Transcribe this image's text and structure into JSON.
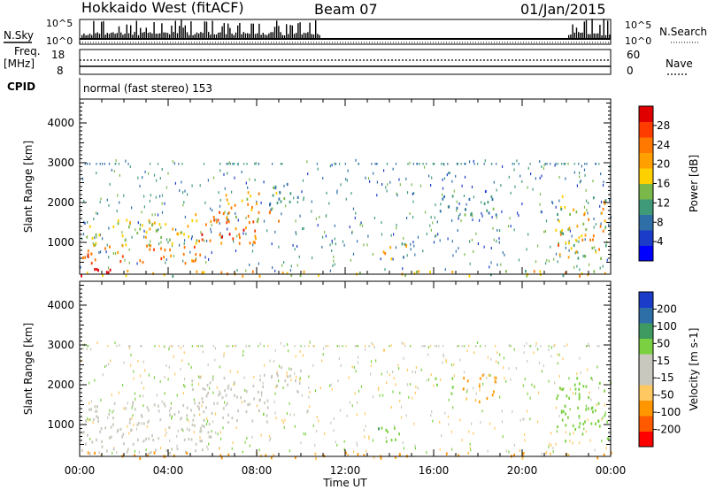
{
  "header": {
    "station": "Hokkaido West (fitACF)",
    "beam": "Beam 07",
    "date": "01/Jan/2015"
  },
  "panels": {
    "nsky": {
      "label": "N.Sky",
      "ytick_top": "10^5",
      "ytick_bottom": "10^0"
    },
    "nsearch": {
      "label": "N.Search",
      "ytick_top": "10^5",
      "ytick_bottom": "10^0"
    },
    "freq": {
      "label_line1": "Freq.",
      "label_line2": "[MHz]",
      "ytick_top": "18",
      "ytick_bottom": "8"
    },
    "nave": {
      "label": "Nave",
      "ytick_top": "60",
      "ytick_bottom": "0"
    },
    "cpid": {
      "label": "CPID",
      "text": "normal (fast stereo) 153"
    }
  },
  "colors": {
    "power": [
      "#0000ff",
      "#1a3cc8",
      "#2f6fa8",
      "#3f9a7a",
      "#7ab84a",
      "#ffd000",
      "#ffa000",
      "#ff7800",
      "#ff3c00",
      "#e00000"
    ],
    "velocity": [
      "#ff0000",
      "#ff5a00",
      "#ff9600",
      "#ffc860",
      "#c8c8be",
      "#c8c8be",
      "#7ad040",
      "#3e9a60",
      "#2f6fa8",
      "#1a3cc8"
    ]
  },
  "chart_data": [
    {
      "type": "heatmap",
      "name": "power",
      "ylabel": "Slant Range [km]",
      "yticks": [
        "1000",
        "2000",
        "3000",
        "4000"
      ],
      "ylim": [
        200,
        4600
      ],
      "xlim": [
        0,
        24
      ],
      "colorbar": {
        "label": "Power [dB]",
        "ticks": [
          "4",
          "8",
          "12",
          "16",
          "20",
          "24",
          "28"
        ],
        "range": [
          0,
          30
        ]
      },
      "regions": [
        {
          "t0": 0.0,
          "t1": 1.5,
          "r0": 180,
          "r1": 500,
          "v0": 28,
          "v1": 30
        },
        {
          "t0": 0.0,
          "t1": 5.5,
          "r0": 500,
          "r1": 950,
          "v0": 20,
          "v1": 26
        },
        {
          "t0": 0.0,
          "t1": 5.5,
          "r0": 950,
          "r1": 1600,
          "v0": 12,
          "v1": 20
        },
        {
          "t0": 5.0,
          "t1": 8.0,
          "r0": 1000,
          "r1": 1800,
          "v0": 18,
          "v1": 28
        },
        {
          "t0": 6.5,
          "t1": 9.0,
          "r0": 1500,
          "r1": 2300,
          "v0": 14,
          "v1": 24
        },
        {
          "t0": 8.5,
          "t1": 10.0,
          "r0": 1800,
          "r1": 2500,
          "v0": 6,
          "v1": 14
        },
        {
          "t0": 13.2,
          "t1": 14.8,
          "r0": 600,
          "r1": 1000,
          "v0": 8,
          "v1": 22
        },
        {
          "t0": 16.0,
          "t1": 18.8,
          "r0": 1700,
          "r1": 2200,
          "v0": 6,
          "v1": 14
        },
        {
          "t0": 21.5,
          "t1": 24.0,
          "r0": 600,
          "r1": 2200,
          "v0": 10,
          "v1": 26
        },
        {
          "t0": 0.0,
          "t1": 24.0,
          "r0": 180,
          "r1": 320,
          "v0": 10,
          "v1": 22
        }
      ]
    },
    {
      "type": "heatmap",
      "name": "velocity",
      "ylabel": "Slant Range [km]",
      "yticks": [
        "1000",
        "2000",
        "3000",
        "4000"
      ],
      "xlabel": "Time UT",
      "xticks": [
        "00:00",
        "04:00",
        "08:00",
        "12:00",
        "16:00",
        "20:00",
        "00:00"
      ],
      "ylim": [
        200,
        4600
      ],
      "xlim": [
        0,
        24
      ],
      "colorbar": {
        "label": "Velocity [m s-1]",
        "ticks": [
          "-200",
          "-100",
          "-50",
          "-15",
          "15",
          "50",
          "100",
          "200"
        ]
      },
      "regions": [
        {
          "t0": 0.0,
          "t1": 6.0,
          "r0": 300,
          "r1": 1600,
          "v0": -10,
          "v1": 10
        },
        {
          "t0": 5.0,
          "t1": 8.5,
          "r0": 1000,
          "r1": 2300,
          "v0": -10,
          "v1": 10
        },
        {
          "t0": 8.5,
          "t1": 10.0,
          "r0": 1800,
          "r1": 2500,
          "v0": -10,
          "v1": 10
        },
        {
          "t0": 16.0,
          "t1": 17.0,
          "r0": 1800,
          "r1": 2200,
          "v0": 20,
          "v1": 40
        },
        {
          "t0": 17.0,
          "t1": 18.8,
          "r0": 1600,
          "r1": 2300,
          "v0": -80,
          "v1": -40
        },
        {
          "t0": 13.2,
          "t1": 14.8,
          "r0": 600,
          "r1": 1000,
          "v0": 20,
          "v1": 60
        },
        {
          "t0": 21.5,
          "t1": 24.0,
          "r0": 600,
          "r1": 2200,
          "v0": 20,
          "v1": 40
        },
        {
          "t0": 0.0,
          "t1": 24.0,
          "r0": 180,
          "r1": 330,
          "v0": -80,
          "v1": -40
        }
      ]
    }
  ]
}
